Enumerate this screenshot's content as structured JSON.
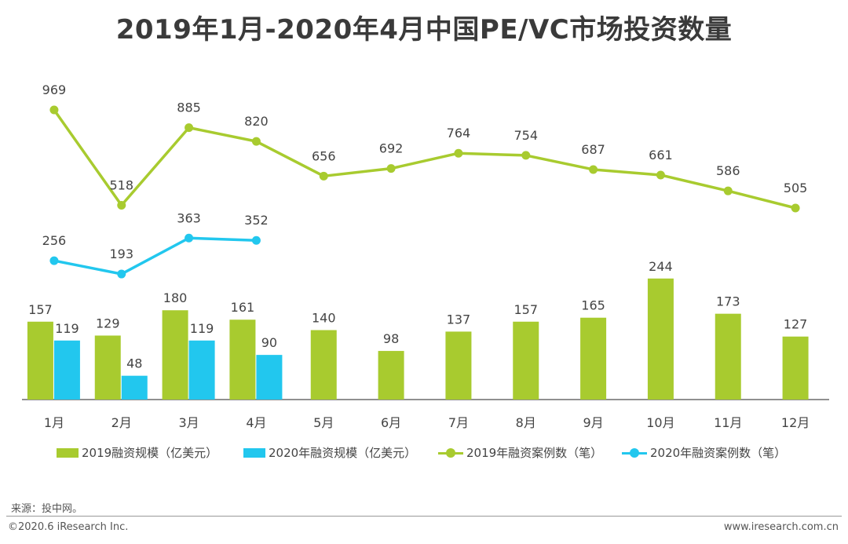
{
  "title": "2019年1月-2020年4月中国PE/VC市场投资数量",
  "chart_data": {
    "type": "bar+line",
    "categories": [
      "1月",
      "2月",
      "3月",
      "4月",
      "5月",
      "6月",
      "7月",
      "8月",
      "9月",
      "10月",
      "11月",
      "12月"
    ],
    "bars": [
      {
        "name": "2019融资规模（亿美元）",
        "color": "#a8cb2f",
        "values": [
          157,
          129,
          180,
          161,
          140,
          98,
          137,
          157,
          165,
          244,
          173,
          127
        ]
      },
      {
        "name": "2020年融资规模（亿美元）",
        "color": "#22c7ee",
        "values": [
          119,
          48,
          119,
          90
        ]
      }
    ],
    "lines": [
      {
        "name": "2019年融资案例数（笔）",
        "color": "#a8cb2f",
        "values": [
          969,
          518,
          885,
          820,
          656,
          692,
          764,
          754,
          687,
          661,
          586,
          505
        ]
      },
      {
        "name": "2020年融资案例数（笔）",
        "color": "#22c7ee",
        "values": [
          256,
          193,
          363,
          352
        ]
      }
    ]
  },
  "source": "来源：投中网。",
  "copyright": "©2020.6 iResearch Inc.",
  "website": "www.iresearch.com.cn"
}
